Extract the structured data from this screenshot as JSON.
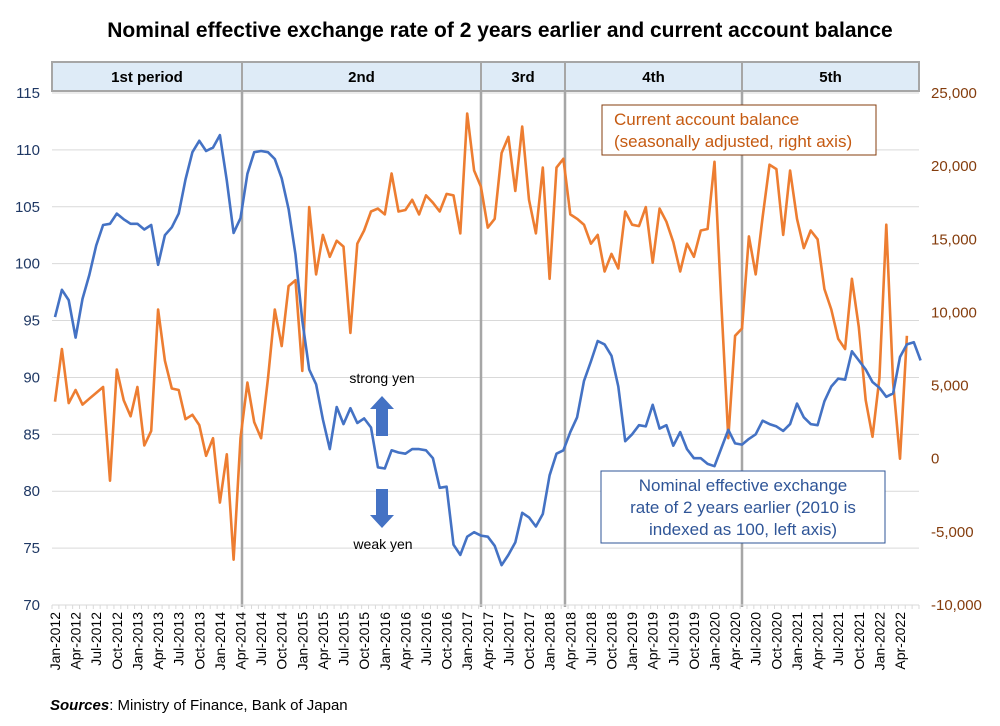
{
  "chart_data": {
    "type": "line",
    "title": "Nominal effective exchange rate of 2 years earlier and current account balance",
    "xlabel": "",
    "ylabel_left": "",
    "ylabel_right": "",
    "x_start": "Jan-2012",
    "x_frequency": "monthly",
    "x_tick_labels": [
      "Jan-2012",
      "Apr-2012",
      "Jul-2012",
      "Oct-2012",
      "Jan-2013",
      "Apr-2013",
      "Jul-2013",
      "Oct-2013",
      "Jan-2014",
      "Apr-2014",
      "Jul-2014",
      "Oct-2014",
      "Jan-2015",
      "Apr-2015",
      "Jul-2015",
      "Oct-2015",
      "Jan-2016",
      "Apr-2016",
      "Jul-2016",
      "Oct-2016",
      "Jan-2017",
      "Apr-2017",
      "Jul-2017",
      "Oct-2017",
      "Jan-2018",
      "Apr-2018",
      "Jul-2018",
      "Oct-2018",
      "Jan-2019",
      "Apr-2019",
      "Jul-2019",
      "Oct-2019",
      "Jan-2020",
      "Apr-2020",
      "Jul-2020",
      "Oct-2020",
      "Jan-2021",
      "Apr-2021",
      "Jul-2021",
      "Oct-2021",
      "Jan-2022",
      "Apr-2022"
    ],
    "y_left": {
      "range": [
        70,
        115
      ],
      "ticks": [
        "70",
        "75",
        "80",
        "85",
        "90",
        "95",
        "100",
        "105",
        "110",
        "115"
      ],
      "color": "#1f3864"
    },
    "y_right": {
      "range": [
        -10000,
        25000
      ],
      "ticks": [
        "-10,000",
        "-5,000",
        "0",
        "5,000",
        "10,000",
        "15,000",
        "20,000",
        "25,000"
      ],
      "color": "#843c0c"
    },
    "grid": true,
    "periods": [
      {
        "label": "1st period",
        "start_index": 0,
        "end_index": 27
      },
      {
        "label": "2nd",
        "start_index": 27,
        "end_index": 62
      },
      {
        "label": "3rd",
        "start_index": 62,
        "end_index": 74
      },
      {
        "label": "4th",
        "start_index": 74,
        "end_index": 100
      },
      {
        "label": "5th",
        "start_index": 100,
        "end_index": 126
      }
    ],
    "series": [
      {
        "name": "Nominal effective exchange rate of 2 years earlier (2010 is indexed as 100, left axis)",
        "axis": "left",
        "color": "#4472c4",
        "values": [
          95.3,
          97.7,
          96.8,
          93.5,
          96.9,
          99.0,
          101.6,
          103.4,
          103.5,
          104.4,
          103.9,
          103.5,
          103.5,
          103.0,
          103.4,
          99.9,
          102.5,
          103.2,
          104.4,
          107.4,
          109.8,
          110.8,
          109.9,
          110.2,
          111.3,
          107.3,
          102.7,
          104.0,
          107.9,
          109.8,
          109.9,
          109.8,
          109.2,
          107.5,
          104.8,
          100.8,
          95.0,
          90.7,
          89.4,
          86.3,
          83.7,
          87.4,
          85.9,
          87.3,
          86.0,
          86.4,
          85.6,
          82.1,
          82.0,
          83.6,
          83.4,
          83.3,
          83.7,
          83.7,
          83.6,
          82.9,
          80.3,
          80.4,
          75.3,
          74.4,
          76.0,
          76.4,
          76.1,
          76.0,
          75.2,
          73.5,
          74.4,
          75.5,
          78.1,
          77.7,
          76.9,
          78.0,
          81.4,
          83.3,
          83.6,
          85.2,
          86.5,
          89.7,
          91.4,
          93.2,
          92.9,
          91.9,
          89.2,
          84.4,
          85.0,
          85.8,
          85.7,
          87.6,
          85.5,
          85.8,
          84.0,
          85.2,
          83.7,
          82.9,
          82.9,
          82.4,
          82.2,
          83.8,
          85.4,
          84.2,
          84.1,
          84.6,
          85.0,
          86.2,
          85.9,
          85.7,
          85.3,
          85.9,
          87.7,
          86.5,
          85.9,
          85.8,
          87.9,
          89.2,
          89.9,
          89.8,
          92.3,
          91.5,
          90.7,
          89.6,
          89.1,
          88.3,
          88.6,
          91.8,
          92.9,
          93.1,
          91.5
        ]
      },
      {
        "name": "Current account balance (seasonally adjusted, right axis)",
        "axis": "right",
        "color": "#ed7d31",
        "values": [
          3900,
          7500,
          3800,
          4700,
          3700,
          4100,
          4500,
          4900,
          -1500,
          6100,
          4000,
          2900,
          4900,
          900,
          1900,
          10200,
          6700,
          4800,
          4700,
          2700,
          3000,
          2300,
          200,
          1400,
          -3000,
          300,
          -6900,
          1400,
          5200,
          2500,
          1400,
          5500,
          10200,
          7700,
          11800,
          12200,
          6000,
          17200,
          12600,
          15300,
          13800,
          14900,
          14500,
          8600,
          14700,
          15600,
          16900,
          17100,
          16700,
          19500,
          16900,
          17000,
          17700,
          16700,
          18000,
          17500,
          16900,
          18100,
          18000,
          15400,
          23600,
          19700,
          18600,
          15800,
          16400,
          20900,
          22000,
          18300,
          22700,
          17700,
          15400,
          19900,
          12300,
          19900,
          20500,
          16700,
          16400,
          16000,
          14700,
          15300,
          12800,
          14000,
          13000,
          16900,
          16000,
          15900,
          17200,
          13400,
          17100,
          16200,
          14800,
          12800,
          14700,
          13800,
          15600,
          15700,
          20300,
          10500,
          1400,
          8400,
          8900,
          15200,
          12600,
          16500,
          20100,
          19800,
          15300,
          19700,
          16400,
          14400,
          15600,
          15000,
          11600,
          10200,
          8200,
          7500,
          12300,
          9000,
          4000,
          1500,
          5500,
          16000,
          5200,
          0,
          8400
        ]
      }
    ],
    "annotations": {
      "current_account_box": [
        "Current account balance",
        "(seasonally adjusted, right axis)"
      ],
      "neer_box": [
        "Nominal effective exchange",
        "rate of 2 years earlier (2010 is",
        "indexed as 100, left axis)"
      ],
      "strong_yen": "strong yen",
      "weak_yen": "weak yen"
    }
  },
  "source": {
    "label": "Sources",
    "text": ": Ministry of Finance, Bank of Japan"
  }
}
